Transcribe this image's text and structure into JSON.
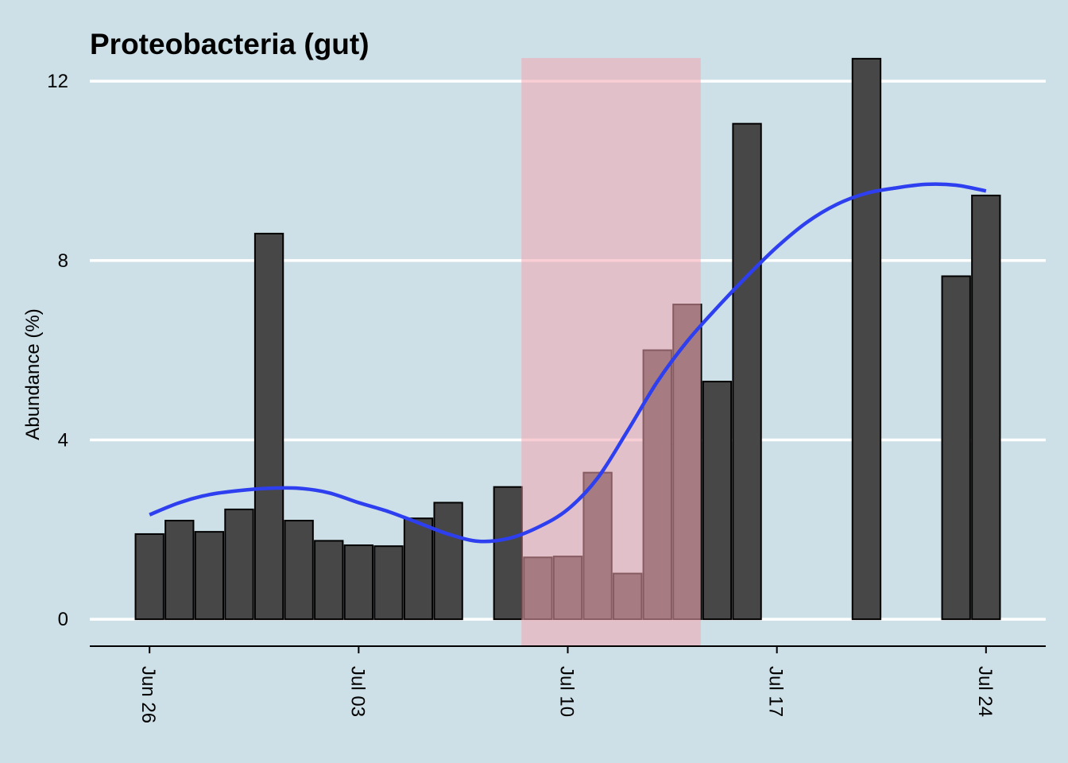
{
  "chart_data": {
    "type": "bar",
    "title": "Proteobacteria (gut)",
    "ylabel": "Abundance (%)",
    "xlabel": "",
    "ylim": [
      -0.6,
      13.1
    ],
    "yticks": [
      0,
      4,
      8,
      12
    ],
    "x_ticks": [
      {
        "date": "2023-06-26",
        "label": "Jun 26"
      },
      {
        "date": "2023-07-03",
        "label": "Jul 03"
      },
      {
        "date": "2023-07-10",
        "label": "Jul 10"
      },
      {
        "date": "2023-07-17",
        "label": "Jul 17"
      },
      {
        "date": "2023-07-24",
        "label": "Jul 24"
      }
    ],
    "xlim": [
      "2023-06-24",
      "2023-07-26"
    ],
    "grid": "horizontal",
    "bars": [
      {
        "date": "2023-06-26",
        "value": 1.9
      },
      {
        "date": "2023-06-27",
        "value": 2.2
      },
      {
        "date": "2023-06-28",
        "value": 1.95
      },
      {
        "date": "2023-06-29",
        "value": 2.45
      },
      {
        "date": "2023-06-30",
        "value": 8.6
      },
      {
        "date": "2023-07-01",
        "value": 2.2
      },
      {
        "date": "2023-07-02",
        "value": 1.75
      },
      {
        "date": "2023-07-03",
        "value": 1.65
      },
      {
        "date": "2023-07-04",
        "value": 1.63
      },
      {
        "date": "2023-07-05",
        "value": 2.25
      },
      {
        "date": "2023-07-06",
        "value": 2.6
      },
      {
        "date": "2023-07-08",
        "value": 2.95
      },
      {
        "date": "2023-07-09",
        "value": 1.38
      },
      {
        "date": "2023-07-10",
        "value": 1.4
      },
      {
        "date": "2023-07-11",
        "value": 3.27
      },
      {
        "date": "2023-07-12",
        "value": 1.02
      },
      {
        "date": "2023-07-13",
        "value": 6.0
      },
      {
        "date": "2023-07-14",
        "value": 7.02
      },
      {
        "date": "2023-07-15",
        "value": 5.3
      },
      {
        "date": "2023-07-16",
        "value": 11.05
      },
      {
        "date": "2023-07-20",
        "value": 12.5
      },
      {
        "date": "2023-07-23",
        "value": 7.65
      },
      {
        "date": "2023-07-24",
        "value": 9.45
      }
    ],
    "highlight": {
      "start": "2023-07-08.45",
      "end": "2023-07-14.45",
      "color": "#f4a6b0"
    },
    "smooth_line": {
      "color": "#2e3ff0",
      "points": [
        {
          "date": "2023-06-26",
          "value": 2.33
        },
        {
          "date": "2023-06-27",
          "value": 2.6
        },
        {
          "date": "2023-06-28",
          "value": 2.78
        },
        {
          "date": "2023-06-29",
          "value": 2.87
        },
        {
          "date": "2023-06-30",
          "value": 2.92
        },
        {
          "date": "2023-07-01",
          "value": 2.92
        },
        {
          "date": "2023-07-02",
          "value": 2.82
        },
        {
          "date": "2023-07-03",
          "value": 2.6
        },
        {
          "date": "2023-07-04",
          "value": 2.4
        },
        {
          "date": "2023-07-05",
          "value": 2.15
        },
        {
          "date": "2023-07-06",
          "value": 1.9
        },
        {
          "date": "2023-07-07",
          "value": 1.74
        },
        {
          "date": "2023-07-08",
          "value": 1.8
        },
        {
          "date": "2023-07-09",
          "value": 2.05
        },
        {
          "date": "2023-07-10",
          "value": 2.45
        },
        {
          "date": "2023-07-11",
          "value": 3.15
        },
        {
          "date": "2023-07-12",
          "value": 4.2
        },
        {
          "date": "2023-07-13",
          "value": 5.3
        },
        {
          "date": "2023-07-14",
          "value": 6.2
        },
        {
          "date": "2023-07-15",
          "value": 6.95
        },
        {
          "date": "2023-07-16",
          "value": 7.65
        },
        {
          "date": "2023-07-17",
          "value": 8.3
        },
        {
          "date": "2023-07-18",
          "value": 8.85
        },
        {
          "date": "2023-07-19",
          "value": 9.25
        },
        {
          "date": "2023-07-20",
          "value": 9.5
        },
        {
          "date": "2023-07-21",
          "value": 9.62
        },
        {
          "date": "2023-07-22",
          "value": 9.7
        },
        {
          "date": "2023-07-23",
          "value": 9.68
        },
        {
          "date": "2023-07-24",
          "value": 9.55
        }
      ]
    },
    "colors": {
      "background": "#cde0e7",
      "bar_fill": "#474747",
      "bar_stroke": "#000000",
      "grid": "#ffffff"
    }
  }
}
